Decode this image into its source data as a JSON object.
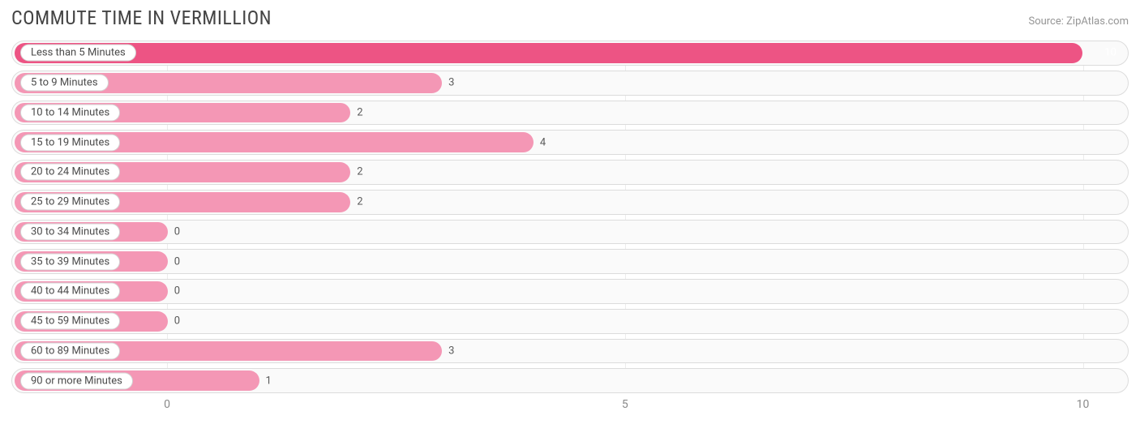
{
  "title": "COMMUTE TIME IN VERMILLION",
  "source": "Source: ZipAtlas.com",
  "chart": {
    "type": "bar-horizontal",
    "background_color": "#ffffff",
    "row_background": "#fafafa",
    "row_border_color": "#dcdcdc",
    "grid_color": "#ececec",
    "title_color": "#444444",
    "title_fontsize": 24,
    "source_color": "#959595",
    "source_fontsize": 13,
    "label_bg": "#ffffff",
    "label_border": "#d2d2d2",
    "label_color": "#4a4a4a",
    "label_fontsize": 13,
    "value_fontsize": 13,
    "value_color_outside": "#5a5a5a",
    "value_color_inside": "#ffffff",
    "tick_color": "#8a8a8a",
    "tick_fontsize": 14,
    "domain_min": -1.7,
    "domain_max": 10.5,
    "x_ticks": [
      0,
      5,
      10
    ],
    "row_gap": 6,
    "bar_vpad": 2,
    "bar_left_inset": 3,
    "rows": [
      {
        "label": "Less than 5 Minutes",
        "value": 10,
        "color": "#ed5484",
        "value_inside": true
      },
      {
        "label": "5 to 9 Minutes",
        "value": 3,
        "color": "#f497b5",
        "value_inside": false
      },
      {
        "label": "10 to 14 Minutes",
        "value": 2,
        "color": "#f497b5",
        "value_inside": false
      },
      {
        "label": "15 to 19 Minutes",
        "value": 4,
        "color": "#f497b5",
        "value_inside": false
      },
      {
        "label": "20 to 24 Minutes",
        "value": 2,
        "color": "#f497b5",
        "value_inside": false
      },
      {
        "label": "25 to 29 Minutes",
        "value": 2,
        "color": "#f497b5",
        "value_inside": false
      },
      {
        "label": "30 to 34 Minutes",
        "value": 0,
        "color": "#f497b5",
        "value_inside": false
      },
      {
        "label": "35 to 39 Minutes",
        "value": 0,
        "color": "#f497b5",
        "value_inside": false
      },
      {
        "label": "40 to 44 Minutes",
        "value": 0,
        "color": "#f497b5",
        "value_inside": false
      },
      {
        "label": "45 to 59 Minutes",
        "value": 0,
        "color": "#f497b5",
        "value_inside": false
      },
      {
        "label": "60 to 89 Minutes",
        "value": 3,
        "color": "#f497b5",
        "value_inside": false
      },
      {
        "label": "90 or more Minutes",
        "value": 1,
        "color": "#f497b5",
        "value_inside": false
      }
    ]
  }
}
